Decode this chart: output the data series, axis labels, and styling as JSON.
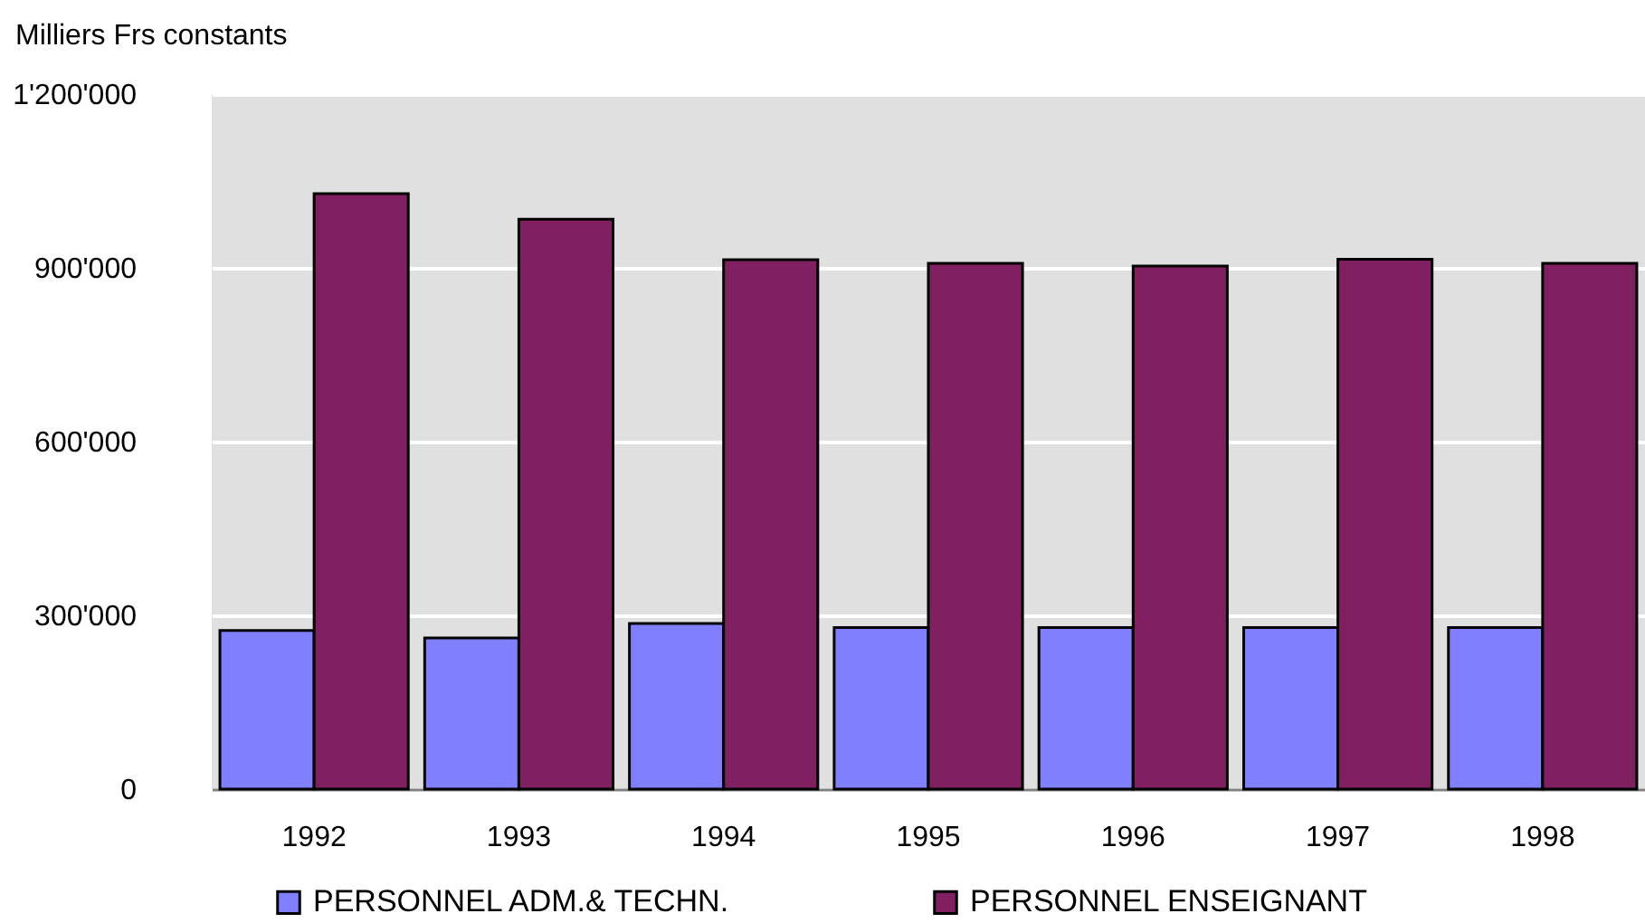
{
  "chart_data": {
    "type": "bar",
    "ylabel": "Milliers Frs constants",
    "categories": [
      "1992",
      "1993",
      "1994",
      "1995",
      "1996",
      "1997",
      "1998"
    ],
    "series": [
      {
        "name": "PERSONNEL ADM.& TECHN.",
        "color": "#8080ff",
        "values": [
          274000,
          261000,
          286000,
          279000,
          279000,
          279000,
          279000
        ]
      },
      {
        "name": "PERSONNEL ENSEIGNANT",
        "color": "#802060",
        "values": [
          1028000,
          984000,
          914000,
          908000,
          903000,
          915000,
          908000
        ]
      }
    ],
    "ylim": [
      0,
      1200000
    ],
    "yticks": [
      0,
      {
        "value": 300000,
        "label": "300'000"
      },
      {
        "value": 600000,
        "label": "600'000"
      },
      {
        "value": 900000,
        "label": "900'000"
      },
      {
        "value": 1200000,
        "label": "1'200'000"
      }
    ],
    "grid": "y",
    "legend": "bottom"
  }
}
